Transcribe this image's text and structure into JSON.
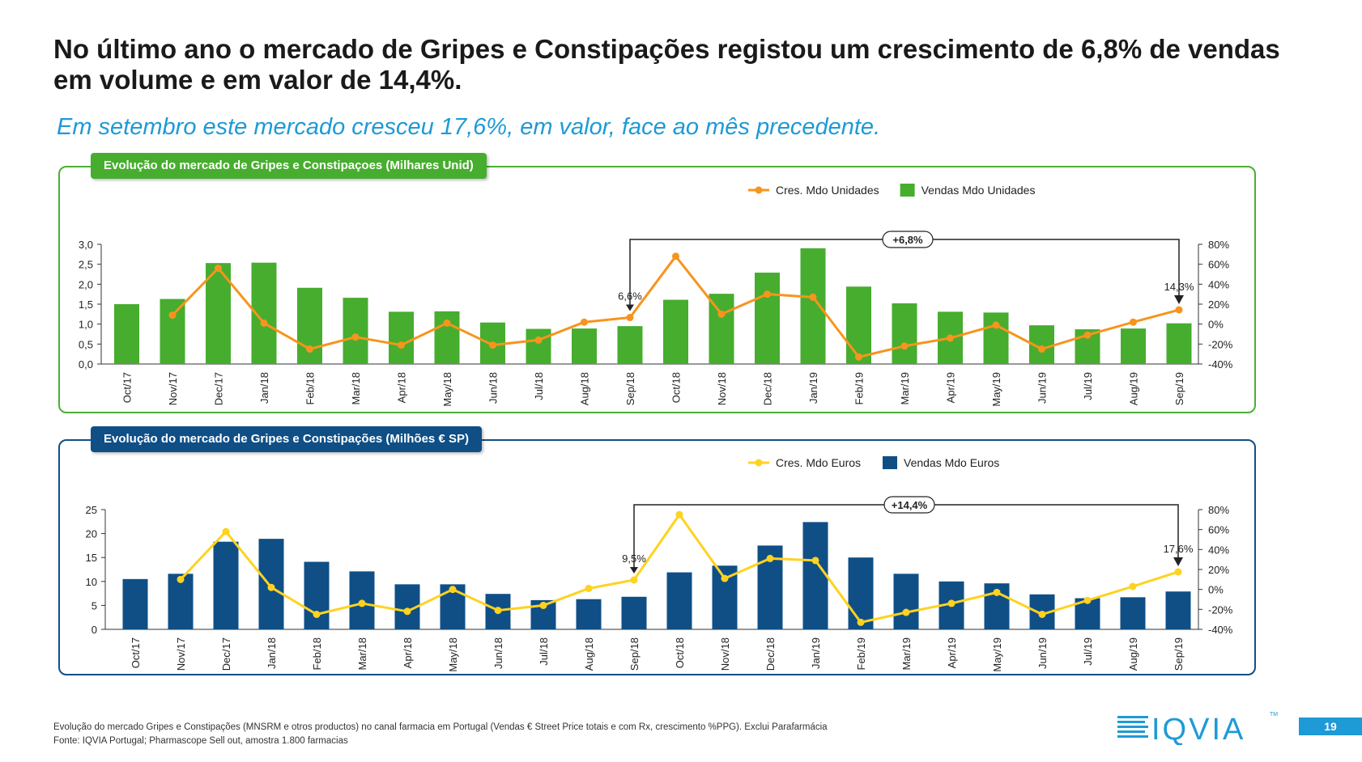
{
  "title": "No último ano o mercado de Gripes e Constipações registou um crescimento de 6,8% de vendas em volume e em valor de 14,4%.",
  "subtitle": "Em setembro este mercado cresceu 17,6%, em valor, face ao mês precedente.",
  "colors": {
    "green": "#47ad2f",
    "orange": "#f7941d",
    "navy": "#0f4f86",
    "yellow": "#ffd21f",
    "accent_blue": "#1e9ad6"
  },
  "chart_data": [
    {
      "type": "bar",
      "title": "Evolução do mercado de Gripes e Constipaçoes (Milhares Unid)",
      "categories": [
        "Oct/17",
        "Nov/17",
        "Dec/17",
        "Jan/18",
        "Feb/18",
        "Mar/18",
        "Apr/18",
        "May/18",
        "Jun/18",
        "Jul/18",
        "Aug/18",
        "Sep/18",
        "Oct/18",
        "Nov/18",
        "Dec/18",
        "Jan/19",
        "Feb/19",
        "Mar/19",
        "Apr/19",
        "May/19",
        "Jun/19",
        "Jul/19",
        "Aug/19",
        "Sep/19"
      ],
      "series": [
        {
          "name": "Vendas Mdo Unidades",
          "kind": "bar",
          "axis": "left",
          "color": "#47ad2f",
          "values": [
            1.5,
            1.63,
            2.53,
            2.54,
            1.91,
            1.66,
            1.31,
            1.32,
            1.04,
            0.88,
            0.89,
            0.95,
            1.61,
            1.76,
            2.29,
            2.9,
            1.94,
            1.52,
            1.31,
            1.29,
            0.97,
            0.87,
            0.89,
            1.02
          ]
        },
        {
          "name": "Cres. Mdo Unidades",
          "kind": "line",
          "axis": "right",
          "color": "#f7941d",
          "values": [
            null,
            9,
            56,
            1,
            -25,
            -13,
            -21,
            1,
            -21,
            -16,
            2,
            6.6,
            68,
            10,
            30,
            27,
            -33,
            -22,
            -14,
            -1,
            -25,
            -11,
            2,
            14.3
          ]
        }
      ],
      "ylim": [
        0,
        3
      ],
      "yticks": [
        "3,0",
        "2,5",
        "2,0",
        "1,5",
        "1,0",
        "0,5",
        "0,0"
      ],
      "y2lim": [
        -40,
        80
      ],
      "y2ticks": [
        "80%",
        "60%",
        "40%",
        "20%",
        "0%",
        "-20%",
        "-40%"
      ],
      "legend_position": "top-right",
      "annotations": {
        "start_label": "6,6%",
        "end_label": "14,3%",
        "bracket_label": "+6,8%"
      }
    },
    {
      "type": "bar",
      "title": "Evolução do mercado de Gripes e Constipações (Milhões € SP)",
      "categories": [
        "Oct/17",
        "Nov/17",
        "Dec/17",
        "Jan/18",
        "Feb/18",
        "Mar/18",
        "Apr/18",
        "May/18",
        "Jun/18",
        "Jul/18",
        "Aug/18",
        "Sep/18",
        "Oct/18",
        "Nov/18",
        "Dec/18",
        "Jan/19",
        "Feb/19",
        "Mar/19",
        "Apr/19",
        "May/19",
        "Jun/19",
        "Jul/19",
        "Aug/19",
        "Sep/19"
      ],
      "series": [
        {
          "name": "Vendas Mdo Euros",
          "kind": "bar",
          "axis": "left",
          "color": "#0f4f86",
          "values": [
            10.5,
            11.6,
            18.3,
            18.9,
            14.1,
            12.1,
            9.4,
            9.4,
            7.4,
            6.1,
            6.3,
            6.8,
            11.9,
            13.3,
            17.5,
            22.4,
            15.0,
            11.6,
            10.0,
            9.6,
            7.3,
            6.5,
            6.7,
            7.9
          ]
        },
        {
          "name": "Cres. Mdo Euros",
          "kind": "line",
          "axis": "right",
          "color": "#ffd21f",
          "values": [
            null,
            10,
            58,
            2,
            -25,
            -14,
            -22,
            0,
            -21,
            -16,
            1,
            9.5,
            75,
            11,
            31,
            29,
            -33,
            -23,
            -14,
            -3,
            -25,
            -11,
            3,
            17.6
          ]
        }
      ],
      "ylim": [
        0,
        25
      ],
      "yticks": [
        "25",
        "20",
        "15",
        "10",
        "5",
        "0"
      ],
      "y2lim": [
        -40,
        80
      ],
      "y2ticks": [
        "80%",
        "60%",
        "40%",
        "20%",
        "0%",
        "-20%",
        "-40%"
      ],
      "legend_position": "top-right",
      "annotations": {
        "start_label": "9,5%",
        "end_label": "17,6%",
        "bracket_label": "+14,4%"
      }
    }
  ],
  "footnote": {
    "line1": "Evolução do mercado Gripes e Constipações (MNSRM e otros productos) no canal farmacia em Portugal (Vendas € Street Price totais e com Rx, crescimento %PPG). Exclui Parafarmácia",
    "line2": "Fonte: IQVIA Portugal; Pharmascope Sell out, amostra 1.800 farmacias"
  },
  "logo": {
    "text": "IQVIA",
    "tm": "TM"
  },
  "page_number": "19"
}
